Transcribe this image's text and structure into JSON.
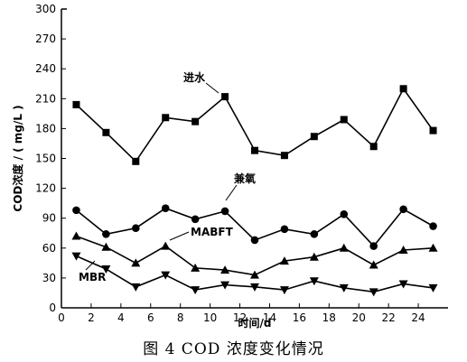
{
  "caption": "图 4    COD 浓度变化情况",
  "chart_data": {
    "type": "line",
    "xlabel": "时间/d",
    "ylabel": "COD浓度 / ( mg/L )",
    "xlim": [
      0,
      26
    ],
    "ylim": [
      0,
      300
    ],
    "xticks": [
      0,
      2,
      4,
      6,
      8,
      10,
      12,
      14,
      16,
      18,
      20,
      22,
      24
    ],
    "yticks": [
      0,
      30,
      60,
      90,
      120,
      150,
      180,
      210,
      240,
      270,
      300
    ],
    "grid": false,
    "x": [
      1,
      3,
      5,
      7,
      9,
      11,
      13,
      15,
      17,
      19,
      21,
      23,
      25
    ],
    "series": [
      {
        "name": "进水",
        "marker": "square",
        "values": [
          204,
          176,
          147,
          191,
          187,
          212,
          158,
          153,
          172,
          189,
          162,
          220,
          178
        ]
      },
      {
        "name": "兼氧",
        "marker": "circle",
        "values": [
          98,
          74,
          80,
          100,
          89,
          97,
          68,
          79,
          74,
          94,
          62,
          99,
          82
        ]
      },
      {
        "name": "MABFT",
        "marker": "triangle",
        "values": [
          72,
          61,
          45,
          62,
          40,
          38,
          33,
          47,
          51,
          60,
          43,
          58,
          60
        ]
      },
      {
        "name": "MBR",
        "marker": "triangle-down",
        "values": [
          52,
          39,
          21,
          33,
          18,
          23,
          21,
          18,
          27,
          20,
          16,
          24,
          20
        ]
      }
    ]
  }
}
